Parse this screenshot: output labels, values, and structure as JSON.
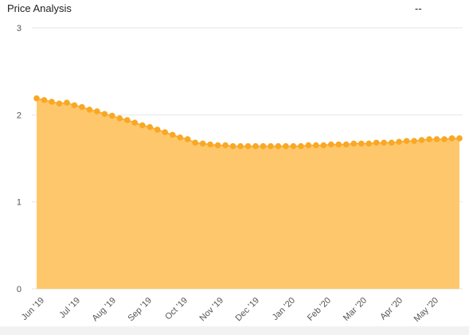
{
  "header": {
    "title": "Price Analysis",
    "status": "--"
  },
  "colors": {
    "fill": "#ffc76c",
    "line": "#f9a825",
    "marker": "#f9a825",
    "grid": "#e6e6e6"
  },
  "chart_data": {
    "type": "area",
    "title": "Price Analysis",
    "xlabel": "",
    "ylabel": "",
    "ylim": [
      0,
      3
    ],
    "yticks": [
      "0",
      "1",
      "2",
      "3"
    ],
    "grid": true,
    "legend": "none",
    "x_tick_labels": [
      "Jun '19",
      "Jul '19",
      "Aug '19",
      "Sep '19",
      "Oct '19",
      "Nov '19",
      "Dec '19",
      "Jan '20",
      "Feb '20",
      "Mar '20",
      "Apr '20",
      "May '20"
    ],
    "series": [
      {
        "values": [
          2.19,
          2.17,
          2.15,
          2.13,
          2.14,
          2.11,
          2.09,
          2.06,
          2.04,
          2.01,
          1.99,
          1.96,
          1.94,
          1.91,
          1.88,
          1.86,
          1.83,
          1.8,
          1.77,
          1.74,
          1.72,
          1.68,
          1.67,
          1.66,
          1.65,
          1.65,
          1.64,
          1.64,
          1.64,
          1.64,
          1.64,
          1.64,
          1.64,
          1.64,
          1.64,
          1.64,
          1.65,
          1.65,
          1.65,
          1.66,
          1.66,
          1.66,
          1.67,
          1.67,
          1.67,
          1.68,
          1.68,
          1.68,
          1.69,
          1.7,
          1.7,
          1.71,
          1.72,
          1.72,
          1.72,
          1.73,
          1.73
        ]
      }
    ]
  }
}
